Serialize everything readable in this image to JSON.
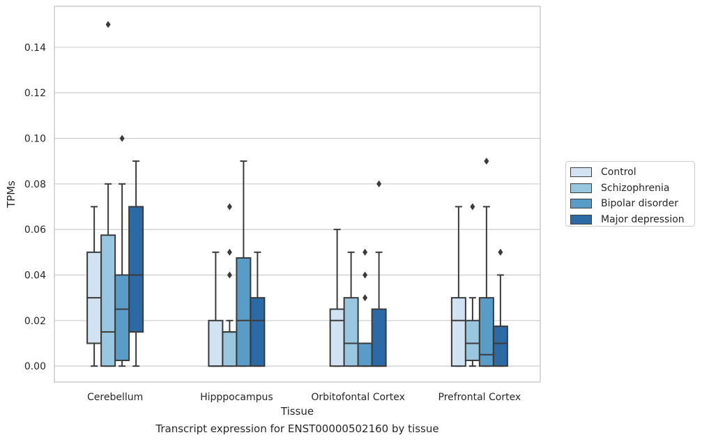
{
  "chart_data": {
    "type": "box",
    "title": "",
    "caption": "Transcript expression for ENST00000502160 by tissue",
    "xlabel": "Tissue",
    "ylabel": "TPMs",
    "ylim": [
      -0.007,
      0.158
    ],
    "yticks": [
      "0.00",
      "0.02",
      "0.04",
      "0.06",
      "0.08",
      "0.10",
      "0.12",
      "0.14"
    ],
    "grid": "horizontal",
    "legend_position": "right",
    "categories": [
      "Cerebellum",
      "Hipppocampus",
      "Orbitofontal Cortex",
      "Prefrontal Cortex"
    ],
    "series": [
      {
        "name": "Control",
        "color": "#d1e2f2",
        "boxes": [
          {
            "whislo": 0.0,
            "q1": 0.01,
            "median": 0.03,
            "q3": 0.05,
            "whishi": 0.07,
            "fliers": []
          },
          {
            "whislo": 0.0,
            "q1": 0.0,
            "median": 0.0,
            "q3": 0.02,
            "whishi": 0.05,
            "fliers": []
          },
          {
            "whislo": 0.0,
            "q1": 0.0,
            "median": 0.02,
            "q3": 0.025,
            "whishi": 0.06,
            "fliers": []
          },
          {
            "whislo": 0.0,
            "q1": 0.0,
            "median": 0.02,
            "q3": 0.03,
            "whishi": 0.07,
            "fliers": []
          }
        ]
      },
      {
        "name": "Schizophrenia",
        "color": "#9ac7e0",
        "boxes": [
          {
            "whislo": 0.0,
            "q1": 0.0,
            "median": 0.015,
            "q3": 0.0575,
            "whishi": 0.08,
            "fliers": [
              0.15
            ]
          },
          {
            "whislo": 0.0,
            "q1": 0.0,
            "median": 0.015,
            "q3": 0.015,
            "whishi": 0.02,
            "fliers": [
              0.04,
              0.05,
              0.07
            ]
          },
          {
            "whislo": 0.0,
            "q1": 0.0,
            "median": 0.01,
            "q3": 0.03,
            "whishi": 0.05,
            "fliers": []
          },
          {
            "whislo": 0.0,
            "q1": 0.0025,
            "median": 0.01,
            "q3": 0.02,
            "whishi": 0.03,
            "fliers": [
              0.07
            ]
          }
        ]
      },
      {
        "name": "Bipolar disorder",
        "color": "#5a9cc8",
        "boxes": [
          {
            "whislo": 0.0,
            "q1": 0.0025,
            "median": 0.025,
            "q3": 0.04,
            "whishi": 0.08,
            "fliers": [
              0.1
            ]
          },
          {
            "whislo": 0.0,
            "q1": 0.0,
            "median": 0.02,
            "q3": 0.0475,
            "whishi": 0.09,
            "fliers": []
          },
          {
            "whislo": 0.0,
            "q1": 0.0,
            "median": 0.0,
            "q3": 0.01,
            "whishi": 0.01,
            "fliers": [
              0.03,
              0.04,
              0.05
            ]
          },
          {
            "whislo": 0.0,
            "q1": 0.0,
            "median": 0.005,
            "q3": 0.03,
            "whishi": 0.07,
            "fliers": [
              0.09
            ]
          }
        ]
      },
      {
        "name": "Major depression",
        "color": "#2c6aa6",
        "boxes": [
          {
            "whislo": 0.0,
            "q1": 0.015,
            "median": 0.04,
            "q3": 0.07,
            "whishi": 0.09,
            "fliers": []
          },
          {
            "whislo": 0.0,
            "q1": 0.0,
            "median": 0.02,
            "q3": 0.03,
            "whishi": 0.05,
            "fliers": []
          },
          {
            "whislo": 0.0,
            "q1": 0.0,
            "median": 0.0,
            "q3": 0.025,
            "whishi": 0.05,
            "fliers": [
              0.08
            ]
          },
          {
            "whislo": 0.0,
            "q1": 0.0,
            "median": 0.01,
            "q3": 0.0175,
            "whishi": 0.04,
            "fliers": [
              0.05
            ]
          }
        ]
      }
    ]
  }
}
